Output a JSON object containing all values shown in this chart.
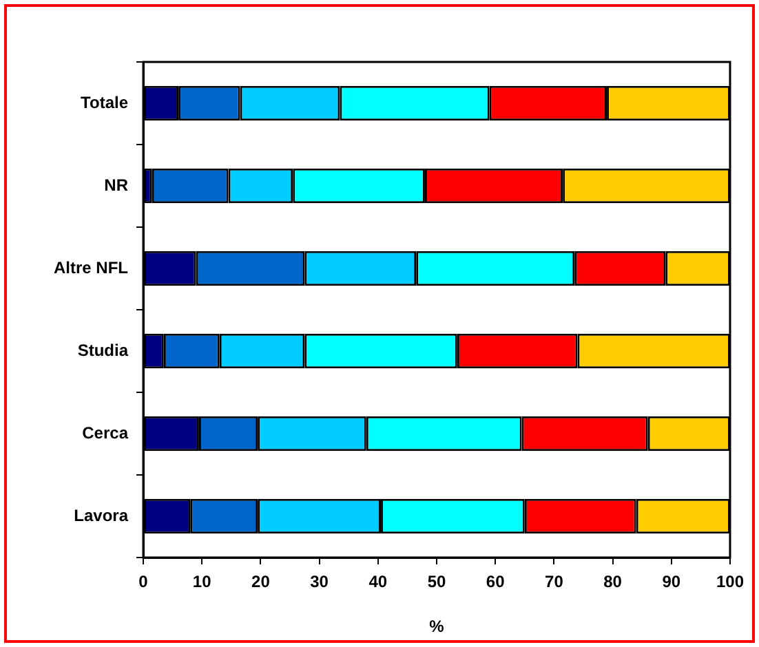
{
  "chart_data": {
    "type": "bar",
    "orientation": "horizontal",
    "stacked": true,
    "xlabel": "%",
    "categories": [
      "Totale",
      "NR",
      "Altre NFL",
      "Studia",
      "Cerca",
      "Lavora"
    ],
    "series": [
      {
        "color": "#000080",
        "values": [
          6,
          1.5,
          9,
          3.5,
          9.5,
          8
        ]
      },
      {
        "color": "#0066cc",
        "values": [
          10.5,
          13,
          18.5,
          9.5,
          10,
          11.5
        ]
      },
      {
        "color": "#00ccff",
        "values": [
          17,
          11,
          19,
          14.5,
          18.5,
          21
        ]
      },
      {
        "color": "#00ffff",
        "values": [
          25.5,
          22.5,
          27,
          26,
          26.5,
          24.5
        ]
      },
      {
        "color": "#ff0000",
        "values": [
          20,
          23.5,
          15.5,
          20.5,
          21.5,
          19
        ]
      },
      {
        "color": "#ffcc00",
        "values": [
          21,
          28.5,
          11,
          26,
          14,
          16
        ]
      }
    ],
    "xlim": [
      0,
      100
    ],
    "xticks": [
      0,
      10,
      20,
      30,
      40,
      50,
      60,
      70,
      80,
      90,
      100
    ]
  }
}
